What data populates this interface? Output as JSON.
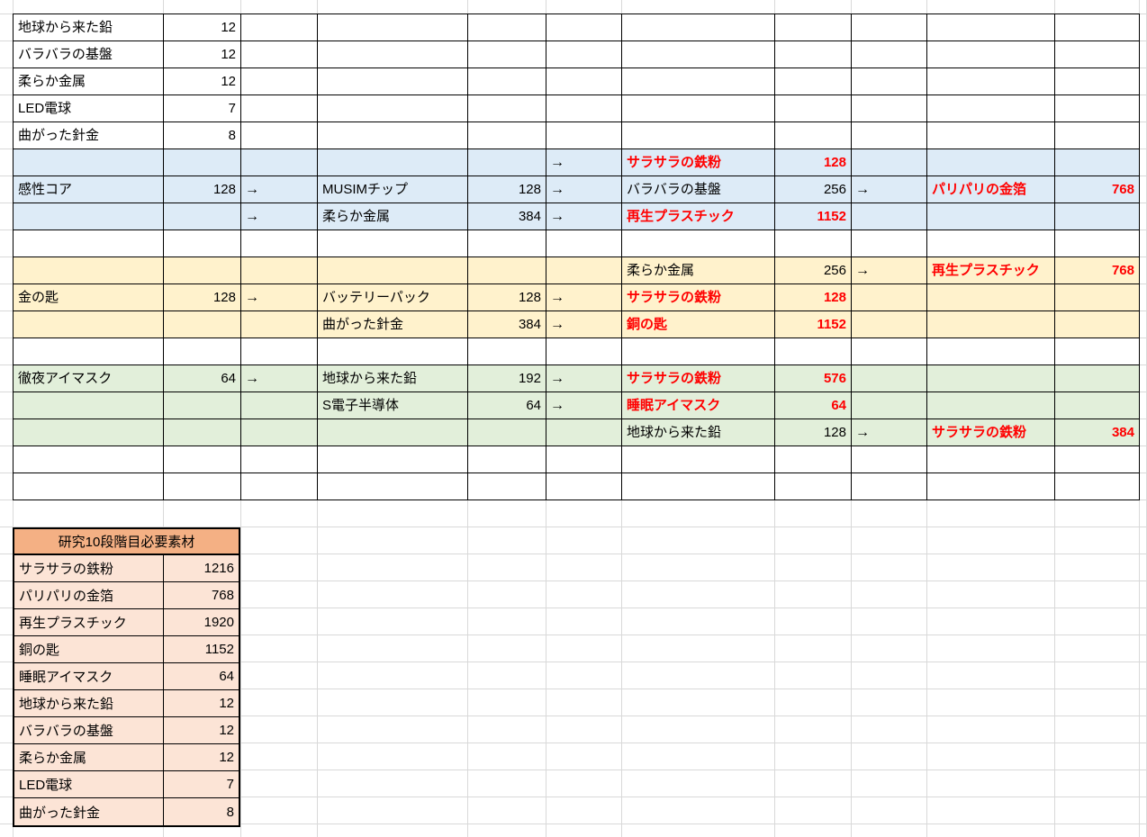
{
  "colors": {
    "red_text": "#FF0000",
    "black_text": "#000000",
    "gridline": "#D9D9D9",
    "cell_border": "#000000",
    "row_bg": {
      "white": "#FFFFFF",
      "blue": "#DDEBF7",
      "yellow": "#FFF2CC",
      "green": "#E2EFDA"
    },
    "summary_header_bg": "#F4B084",
    "summary_row_bg": "#FCE4D6"
  },
  "main_grid": {
    "rows": [
      {
        "bg": "white",
        "cells": [
          {
            "col": "B",
            "t": "地球から来た鉛",
            "type": "name"
          },
          {
            "col": "C",
            "t": "12",
            "type": "num"
          }
        ]
      },
      {
        "bg": "white",
        "cells": [
          {
            "col": "B",
            "t": "バラバラの基盤",
            "type": "name"
          },
          {
            "col": "C",
            "t": "12",
            "type": "num"
          }
        ]
      },
      {
        "bg": "white",
        "cells": [
          {
            "col": "B",
            "t": "柔らか金属",
            "type": "name"
          },
          {
            "col": "C",
            "t": "12",
            "type": "num"
          }
        ]
      },
      {
        "bg": "white",
        "cells": [
          {
            "col": "B",
            "t": "LED電球",
            "type": "name"
          },
          {
            "col": "C",
            "t": "7",
            "type": "num"
          }
        ]
      },
      {
        "bg": "white",
        "cells": [
          {
            "col": "B",
            "t": "曲がった針金",
            "type": "name"
          },
          {
            "col": "C",
            "t": "8",
            "type": "num"
          }
        ]
      },
      {
        "bg": "blue",
        "cells": [
          {
            "col": "G",
            "t": "→",
            "type": "arrow"
          },
          {
            "col": "H",
            "t": "サラサラの鉄粉",
            "type": "name",
            "red": true
          },
          {
            "col": "I",
            "t": "128",
            "type": "num",
            "red": true
          }
        ]
      },
      {
        "bg": "blue",
        "cells": [
          {
            "col": "B",
            "t": "感性コア",
            "type": "name"
          },
          {
            "col": "C",
            "t": "128",
            "type": "num"
          },
          {
            "col": "D",
            "t": "→",
            "type": "arrow"
          },
          {
            "col": "E",
            "t": "MUSIMチップ",
            "type": "name"
          },
          {
            "col": "F",
            "t": "128",
            "type": "num"
          },
          {
            "col": "G",
            "t": "→",
            "type": "arrow"
          },
          {
            "col": "H",
            "t": "バラバラの基盤",
            "type": "name"
          },
          {
            "col": "I",
            "t": "256",
            "type": "num"
          },
          {
            "col": "J",
            "t": "→",
            "type": "arrow"
          },
          {
            "col": "K",
            "t": "パリパリの金箔",
            "type": "name",
            "red": true
          },
          {
            "col": "L",
            "t": "768",
            "type": "num",
            "red": true
          }
        ]
      },
      {
        "bg": "blue",
        "cells": [
          {
            "col": "D",
            "t": "→",
            "type": "arrow"
          },
          {
            "col": "E",
            "t": "柔らか金属",
            "type": "name"
          },
          {
            "col": "F",
            "t": "384",
            "type": "num"
          },
          {
            "col": "G",
            "t": "→",
            "type": "arrow"
          },
          {
            "col": "H",
            "t": "再生プラスチック",
            "type": "name",
            "red": true
          },
          {
            "col": "I",
            "t": "1152",
            "type": "num",
            "red": true
          }
        ]
      },
      {
        "bg": "white",
        "cells": []
      },
      {
        "bg": "yellow",
        "cells": [
          {
            "col": "H",
            "t": "柔らか金属",
            "type": "name"
          },
          {
            "col": "I",
            "t": "256",
            "type": "num"
          },
          {
            "col": "J",
            "t": "→",
            "type": "arrow"
          },
          {
            "col": "K",
            "t": "再生プラスチック",
            "type": "name",
            "red": true
          },
          {
            "col": "L",
            "t": "768",
            "type": "num",
            "red": true
          }
        ]
      },
      {
        "bg": "yellow",
        "cells": [
          {
            "col": "B",
            "t": "金の匙",
            "type": "name"
          },
          {
            "col": "C",
            "t": "128",
            "type": "num"
          },
          {
            "col": "D",
            "t": "→",
            "type": "arrow"
          },
          {
            "col": "E",
            "t": "バッテリーパック",
            "type": "name"
          },
          {
            "col": "F",
            "t": "128",
            "type": "num"
          },
          {
            "col": "G",
            "t": "→",
            "type": "arrow"
          },
          {
            "col": "H",
            "t": "サラサラの鉄粉",
            "type": "name",
            "red": true
          },
          {
            "col": "I",
            "t": "128",
            "type": "num",
            "red": true
          }
        ]
      },
      {
        "bg": "yellow",
        "cells": [
          {
            "col": "E",
            "t": "曲がった針金",
            "type": "name"
          },
          {
            "col": "F",
            "t": "384",
            "type": "num"
          },
          {
            "col": "G",
            "t": "→",
            "type": "arrow"
          },
          {
            "col": "H",
            "t": "銅の匙",
            "type": "name",
            "red": true
          },
          {
            "col": "I",
            "t": "1152",
            "type": "num",
            "red": true
          }
        ]
      },
      {
        "bg": "white",
        "cells": []
      },
      {
        "bg": "green",
        "cells": [
          {
            "col": "B",
            "t": "徹夜アイマスク",
            "type": "name"
          },
          {
            "col": "C",
            "t": "64",
            "type": "num"
          },
          {
            "col": "D",
            "t": "→",
            "type": "arrow"
          },
          {
            "col": "E",
            "t": "地球から来た鉛",
            "type": "name"
          },
          {
            "col": "F",
            "t": "192",
            "type": "num"
          },
          {
            "col": "G",
            "t": "→",
            "type": "arrow"
          },
          {
            "col": "H",
            "t": "サラサラの鉄粉",
            "type": "name",
            "red": true
          },
          {
            "col": "I",
            "t": "576",
            "type": "num",
            "red": true
          }
        ]
      },
      {
        "bg": "green",
        "cells": [
          {
            "col": "E",
            "t": "S電子半導体",
            "type": "name"
          },
          {
            "col": "F",
            "t": "64",
            "type": "num"
          },
          {
            "col": "G",
            "t": "→",
            "type": "arrow"
          },
          {
            "col": "H",
            "t": "睡眠アイマスク",
            "type": "name",
            "red": true
          },
          {
            "col": "I",
            "t": "64",
            "type": "num",
            "red": true
          }
        ]
      },
      {
        "bg": "green",
        "cells": [
          {
            "col": "H",
            "t": "地球から来た鉛",
            "type": "name"
          },
          {
            "col": "I",
            "t": "128",
            "type": "num"
          },
          {
            "col": "J",
            "t": "→",
            "type": "arrow"
          },
          {
            "col": "K",
            "t": "サラサラの鉄粉",
            "type": "name",
            "red": true
          },
          {
            "col": "L",
            "t": "384",
            "type": "num",
            "red": true
          }
        ]
      },
      {
        "bg": "white",
        "cells": []
      },
      {
        "bg": "white",
        "cells": []
      }
    ]
  },
  "summary_table": {
    "title": "研究10段階目必要素材",
    "rows": [
      {
        "name": "サラサラの鉄粉",
        "qty": "1216"
      },
      {
        "name": "パリパリの金箔",
        "qty": "768"
      },
      {
        "name": "再生プラスチック",
        "qty": "1920"
      },
      {
        "name": "銅の匙",
        "qty": "1152"
      },
      {
        "name": "睡眠アイマスク",
        "qty": "64"
      },
      {
        "name": "地球から来た鉛",
        "qty": "12"
      },
      {
        "name": "バラバラの基盤",
        "qty": "12"
      },
      {
        "name": "柔らか金属",
        "qty": "12"
      },
      {
        "name": "LED電球",
        "qty": "7"
      },
      {
        "name": "曲がった針金",
        "qty": "8"
      }
    ]
  }
}
